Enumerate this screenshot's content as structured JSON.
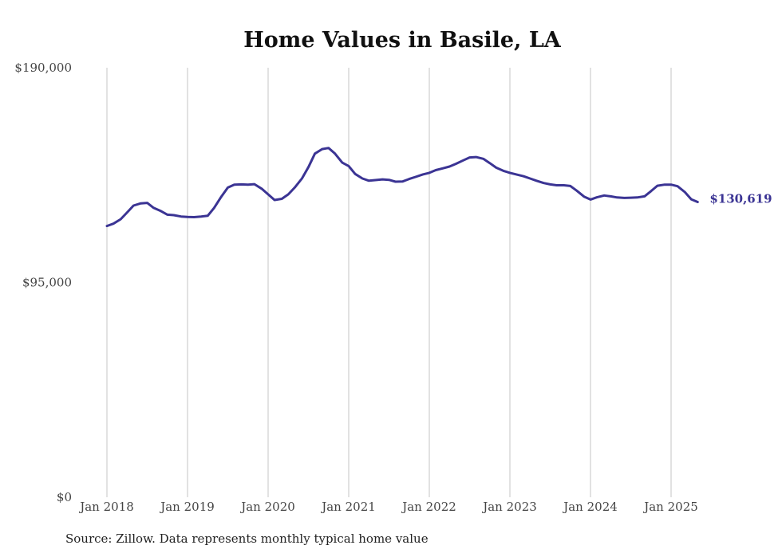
{
  "chart_data": {
    "type": "line",
    "title": "Home Values in Basile, LA",
    "xlabel": "",
    "ylabel": "",
    "ylim": [
      0,
      190000
    ],
    "y_ticks": [
      {
        "value": 0,
        "label": "$0"
      },
      {
        "value": 95000,
        "label": "$95,000"
      },
      {
        "value": 190000,
        "label": "$190,000"
      }
    ],
    "x_ticks": [
      {
        "value": 2018.0,
        "label": "Jan 2018"
      },
      {
        "value": 2019.0,
        "label": "Jan 2019"
      },
      {
        "value": 2020.0,
        "label": "Jan 2020"
      },
      {
        "value": 2021.0,
        "label": "Jan 2021"
      },
      {
        "value": 2022.0,
        "label": "Jan 2022"
      },
      {
        "value": 2023.0,
        "label": "Jan 2023"
      },
      {
        "value": 2024.0,
        "label": "Jan 2024"
      },
      {
        "value": 2025.0,
        "label": "Jan 2025"
      }
    ],
    "xlim": [
      2018.0,
      2025.33
    ],
    "grid": {
      "vertical": true,
      "horizontal": false
    },
    "line_color": "#3b3494",
    "end_label": "$130,619",
    "series": [
      {
        "x": [
          2018.0,
          2018.08,
          2018.17,
          2018.25,
          2018.33,
          2018.42,
          2018.5,
          2018.58,
          2018.67,
          2018.75,
          2018.83,
          2018.92,
          2019.0,
          2019.08,
          2019.17,
          2019.25,
          2019.33,
          2019.42,
          2019.5,
          2019.58,
          2019.67,
          2019.75,
          2019.83,
          2019.92,
          2020.0,
          2020.08,
          2020.17,
          2020.25,
          2020.33,
          2020.42,
          2020.5,
          2020.58,
          2020.67,
          2020.75,
          2020.83,
          2020.92,
          2021.0,
          2021.08,
          2021.17,
          2021.25,
          2021.33,
          2021.42,
          2021.5,
          2021.58,
          2021.67,
          2021.75,
          2021.83,
          2021.92,
          2022.0,
          2022.08,
          2022.17,
          2022.25,
          2022.33,
          2022.42,
          2022.5,
          2022.58,
          2022.67,
          2022.75,
          2022.83,
          2022.92,
          2023.0,
          2023.08,
          2023.17,
          2023.25,
          2023.33,
          2023.42,
          2023.5,
          2023.58,
          2023.67,
          2023.75,
          2023.83,
          2023.92,
          2024.0,
          2024.08,
          2024.17,
          2024.25,
          2024.33,
          2024.42,
          2024.5,
          2024.58,
          2024.67,
          2024.75,
          2024.83,
          2024.92,
          2025.0,
          2025.08,
          2025.17,
          2025.25,
          2025.33
        ],
        "values": [
          120000,
          121000,
          123000,
          126000,
          129000,
          130000,
          130200,
          128000,
          126600,
          125000,
          124800,
          124200,
          124000,
          123900,
          124200,
          124500,
          128000,
          133000,
          137000,
          138300,
          138400,
          138300,
          138500,
          136500,
          134000,
          131500,
          132000,
          134000,
          137000,
          141000,
          146000,
          152000,
          154000,
          154500,
          152000,
          148000,
          146500,
          143000,
          141000,
          140000,
          140300,
          140600,
          140400,
          139600,
          139700,
          140800,
          141700,
          142800,
          143500,
          144700,
          145500,
          146300,
          147500,
          149000,
          150300,
          150500,
          149700,
          147800,
          145800,
          144400,
          143500,
          142800,
          142000,
          141000,
          140000,
          139000,
          138400,
          138000,
          138000,
          137700,
          135600,
          133000,
          131700,
          132700,
          133500,
          133100,
          132600,
          132400,
          132500,
          132600,
          133100,
          135400,
          137800,
          138300,
          138300,
          137600,
          135000,
          131800,
          130619
        ]
      }
    ]
  },
  "source_text": "Source: Zillow. Data represents monthly typical home value"
}
